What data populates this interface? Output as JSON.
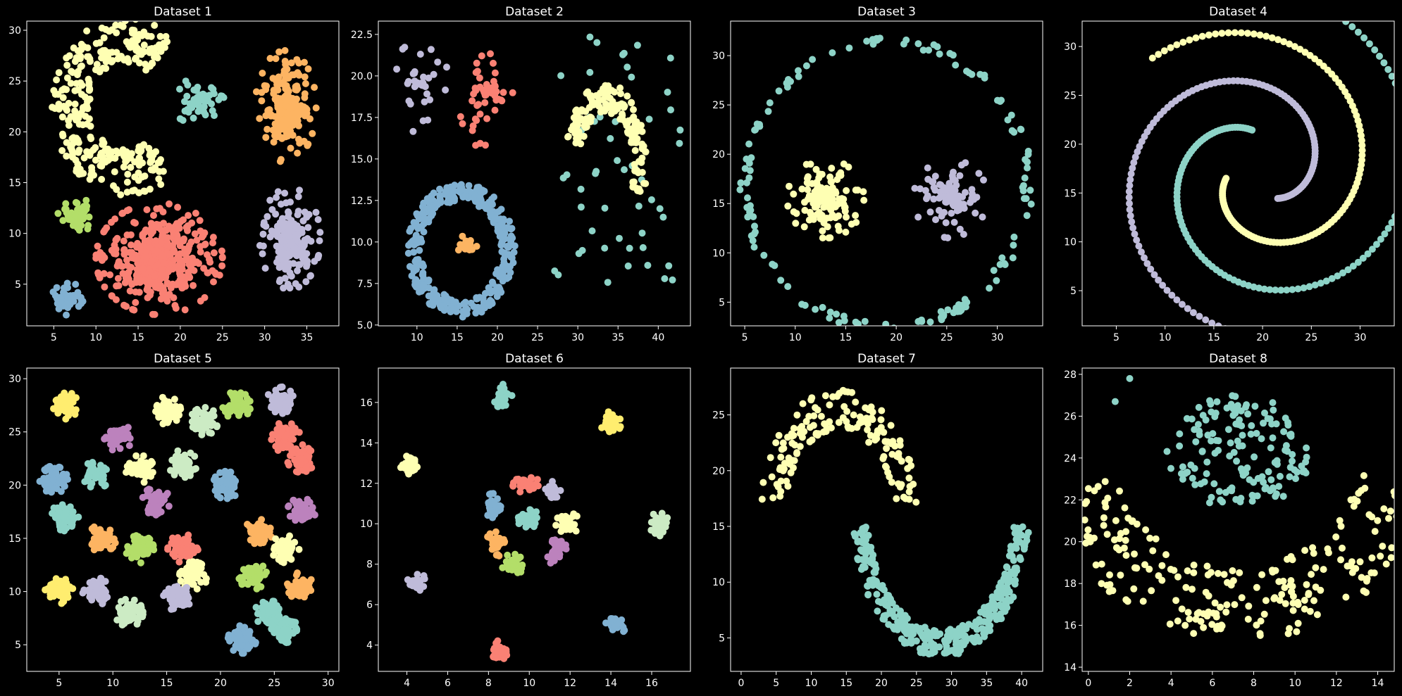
{
  "figure": {
    "background": "#000000",
    "text_color": "#ffffff"
  },
  "palette": [
    "#8dd3c7",
    "#feffb3",
    "#bfbbd9",
    "#fa8174",
    "#81b1d2",
    "#fdb462",
    "#b3de69",
    "#bc82bd",
    "#ccebc4",
    "#ffed6f"
  ],
  "chart_data": [
    {
      "type": "scatter",
      "title": "Dataset 1",
      "xlim": [
        1.8,
        38.8
      ],
      "ylim": [
        0.9,
        30.9
      ],
      "xticks": [
        5,
        10,
        15,
        20,
        25,
        30,
        35
      ],
      "yticks": [
        5,
        10,
        15,
        20,
        25,
        30
      ],
      "clusters": [
        {
          "shape": "moon",
          "cx": 13.5,
          "cy": 22.5,
          "r": 6.5,
          "w": 4.5,
          "a0": 50,
          "a1": 310,
          "n": 300,
          "color": 1
        },
        {
          "shape": "blob",
          "cx": 22.0,
          "cy": 23.0,
          "rx": 3.2,
          "ry": 2.2,
          "n": 60,
          "color": 0
        },
        {
          "shape": "blob",
          "cx": 32.5,
          "cy": 22.5,
          "rx": 3.6,
          "ry": 5.5,
          "n": 220,
          "color": 5
        },
        {
          "shape": "blob",
          "cx": 33.0,
          "cy": 9.5,
          "rx": 3.6,
          "ry": 5.0,
          "n": 210,
          "color": 2
        },
        {
          "shape": "blob",
          "cx": 17.5,
          "cy": 7.5,
          "rx": 7.5,
          "ry": 5.5,
          "n": 520,
          "color": 3
        },
        {
          "shape": "blob",
          "cx": 7.7,
          "cy": 11.8,
          "rx": 2.2,
          "ry": 1.7,
          "n": 50,
          "color": 6
        },
        {
          "shape": "blob",
          "cx": 6.8,
          "cy": 3.5,
          "rx": 2.1,
          "ry": 1.6,
          "n": 50,
          "color": 4
        }
      ]
    },
    {
      "type": "scatter",
      "title": "Dataset 2",
      "xlim": [
        5.2,
        44.0
      ],
      "ylim": [
        4.95,
        23.3
      ],
      "xticks": [
        10,
        15,
        20,
        25,
        30,
        35,
        40
      ],
      "yticks": [
        5.0,
        7.5,
        10.0,
        12.5,
        15.0,
        17.5,
        20.0,
        22.5
      ],
      "tick_decimals": 1,
      "clusters": [
        {
          "shape": "blob",
          "cx": 10.5,
          "cy": 19.5,
          "rx": 3.4,
          "ry": 3.0,
          "n": 35,
          "color": 2
        },
        {
          "shape": "blob",
          "cx": 18.5,
          "cy": 19.0,
          "rx": 3.4,
          "ry": 3.4,
          "n": 50,
          "color": 3
        },
        {
          "shape": "uniform",
          "x0": 27,
          "x1": 43,
          "y0": 7.5,
          "y1": 22.5,
          "n": 55,
          "color": 0
        },
        {
          "shape": "moon",
          "cx": 33.5,
          "cy": 14.5,
          "r": 4.2,
          "w": 1.8,
          "a0": -20,
          "a1": 160,
          "n": 160,
          "color": 1
        },
        {
          "shape": "ring",
          "cx": 15.5,
          "cy": 9.5,
          "rx": 5.8,
          "ry": 3.5,
          "w": 0.55,
          "n": 330,
          "color": 4
        },
        {
          "shape": "blob",
          "cx": 16.2,
          "cy": 9.8,
          "rx": 1.3,
          "ry": 0.6,
          "n": 30,
          "color": 5
        }
      ]
    },
    {
      "type": "scatter",
      "title": "Dataset 3",
      "xlim": [
        3.6,
        34.5
      ],
      "ylim": [
        2.6,
        33.5
      ],
      "xticks": [
        5,
        10,
        15,
        20,
        25,
        30
      ],
      "yticks": [
        5,
        10,
        15,
        20,
        25,
        30
      ],
      "clusters": [
        {
          "shape": "ring",
          "cx": 19.0,
          "cy": 17.0,
          "rx": 14.0,
          "ry": 14.5,
          "w": 0.5,
          "n": 140,
          "color": 0
        },
        {
          "shape": "blob",
          "cx": 13.0,
          "cy": 15.5,
          "rx": 3.8,
          "ry": 4.0,
          "n": 150,
          "color": 1
        },
        {
          "shape": "blob",
          "cx": 25.5,
          "cy": 15.5,
          "rx": 3.8,
          "ry": 4.0,
          "n": 110,
          "color": 2
        }
      ]
    },
    {
      "type": "scatter",
      "title": "Dataset 4",
      "xlim": [
        1.5,
        33.5
      ],
      "ylim": [
        1.4,
        32.6
      ],
      "xticks": [
        5,
        10,
        15,
        20,
        25,
        30
      ],
      "yticks": [
        5,
        10,
        15,
        20,
        25,
        30
      ],
      "clusters": [
        {
          "shape": "spiral",
          "cx": 19.5,
          "cy": 17.0,
          "n": 130,
          "a": 0.4,
          "b": 2.4,
          "t0": 1.7,
          "t1": 7.7,
          "phase": 0,
          "color": 0
        },
        {
          "shape": "spiral",
          "cx": 19.5,
          "cy": 17.0,
          "n": 120,
          "a": 0.4,
          "b": 2.4,
          "t0": 1.2,
          "t1": 6.5,
          "phase": 2.094,
          "color": 1
        },
        {
          "shape": "spiral",
          "cx": 19.5,
          "cy": 17.0,
          "n": 120,
          "a": 0.4,
          "b": 2.4,
          "t0": 1.2,
          "t1": 6.6,
          "phase": 4.189,
          "color": 2
        }
      ]
    },
    {
      "type": "scatter",
      "title": "Dataset 5",
      "xlim": [
        2.0,
        31.0
      ],
      "ylim": [
        2.5,
        31.0
      ],
      "xticks": [
        5,
        10,
        15,
        20,
        25,
        30
      ],
      "yticks": [
        5,
        10,
        15,
        20,
        25,
        30
      ],
      "clusters": [
        {
          "shape": "blob",
          "cx": 5.5,
          "cy": 27.5,
          "rx": 1.3,
          "ry": 1.3,
          "n": 85,
          "color": 9
        },
        {
          "shape": "blob",
          "cx": 15.0,
          "cy": 27.0,
          "rx": 1.3,
          "ry": 1.3,
          "n": 85,
          "color": 1
        },
        {
          "shape": "blob",
          "cx": 18.5,
          "cy": 26.0,
          "rx": 1.3,
          "ry": 1.3,
          "n": 85,
          "color": 8
        },
        {
          "shape": "blob",
          "cx": 21.5,
          "cy": 27.5,
          "rx": 1.3,
          "ry": 1.3,
          "n": 85,
          "color": 6
        },
        {
          "shape": "blob",
          "cx": 25.5,
          "cy": 28.0,
          "rx": 1.3,
          "ry": 1.3,
          "n": 85,
          "color": 2
        },
        {
          "shape": "blob",
          "cx": 10.5,
          "cy": 24.5,
          "rx": 1.3,
          "ry": 1.3,
          "n": 85,
          "color": 7
        },
        {
          "shape": "blob",
          "cx": 26.0,
          "cy": 24.5,
          "rx": 1.4,
          "ry": 1.4,
          "n": 90,
          "color": 3
        },
        {
          "shape": "blob",
          "cx": 27.5,
          "cy": 22.5,
          "rx": 1.3,
          "ry": 1.3,
          "n": 85,
          "color": 3
        },
        {
          "shape": "blob",
          "cx": 4.5,
          "cy": 20.5,
          "rx": 1.3,
          "ry": 1.3,
          "n": 85,
          "color": 4
        },
        {
          "shape": "blob",
          "cx": 8.5,
          "cy": 21.0,
          "rx": 1.3,
          "ry": 1.3,
          "n": 85,
          "color": 0
        },
        {
          "shape": "blob",
          "cx": 12.5,
          "cy": 21.5,
          "rx": 1.3,
          "ry": 1.3,
          "n": 85,
          "color": 1
        },
        {
          "shape": "blob",
          "cx": 16.5,
          "cy": 22.0,
          "rx": 1.3,
          "ry": 1.3,
          "n": 85,
          "color": 8
        },
        {
          "shape": "blob",
          "cx": 20.5,
          "cy": 20.0,
          "rx": 1.3,
          "ry": 1.3,
          "n": 85,
          "color": 4
        },
        {
          "shape": "blob",
          "cx": 14.0,
          "cy": 18.5,
          "rx": 1.3,
          "ry": 1.3,
          "n": 85,
          "color": 7
        },
        {
          "shape": "blob",
          "cx": 5.5,
          "cy": 17.0,
          "rx": 1.3,
          "ry": 1.3,
          "n": 85,
          "color": 0
        },
        {
          "shape": "blob",
          "cx": 9.0,
          "cy": 15.0,
          "rx": 1.3,
          "ry": 1.3,
          "n": 85,
          "color": 5
        },
        {
          "shape": "blob",
          "cx": 12.5,
          "cy": 14.0,
          "rx": 1.3,
          "ry": 1.3,
          "n": 85,
          "color": 6
        },
        {
          "shape": "blob",
          "cx": 16.5,
          "cy": 14.0,
          "rx": 1.4,
          "ry": 1.4,
          "n": 90,
          "color": 3
        },
        {
          "shape": "blob",
          "cx": 23.5,
          "cy": 15.5,
          "rx": 1.3,
          "ry": 1.3,
          "n": 85,
          "color": 5
        },
        {
          "shape": "blob",
          "cx": 27.5,
          "cy": 17.5,
          "rx": 1.3,
          "ry": 1.3,
          "n": 85,
          "color": 7
        },
        {
          "shape": "blob",
          "cx": 26.0,
          "cy": 14.0,
          "rx": 1.3,
          "ry": 1.3,
          "n": 85,
          "color": 1
        },
        {
          "shape": "blob",
          "cx": 17.5,
          "cy": 11.5,
          "rx": 1.3,
          "ry": 1.3,
          "n": 85,
          "color": 1
        },
        {
          "shape": "blob",
          "cx": 23.0,
          "cy": 11.5,
          "rx": 1.3,
          "ry": 1.3,
          "n": 85,
          "color": 6
        },
        {
          "shape": "blob",
          "cx": 27.5,
          "cy": 10.5,
          "rx": 1.3,
          "ry": 1.3,
          "n": 85,
          "color": 5
        },
        {
          "shape": "blob",
          "cx": 5.0,
          "cy": 10.0,
          "rx": 1.3,
          "ry": 1.3,
          "n": 85,
          "color": 9
        },
        {
          "shape": "blob",
          "cx": 8.5,
          "cy": 10.0,
          "rx": 1.3,
          "ry": 1.3,
          "n": 85,
          "color": 2
        },
        {
          "shape": "blob",
          "cx": 11.5,
          "cy": 8.0,
          "rx": 1.3,
          "ry": 1.3,
          "n": 85,
          "color": 8
        },
        {
          "shape": "blob",
          "cx": 16.0,
          "cy": 9.5,
          "rx": 1.3,
          "ry": 1.3,
          "n": 85,
          "color": 2
        },
        {
          "shape": "blob",
          "cx": 24.5,
          "cy": 8.0,
          "rx": 1.3,
          "ry": 1.3,
          "n": 85,
          "color": 0
        },
        {
          "shape": "blob",
          "cx": 22.0,
          "cy": 5.5,
          "rx": 1.3,
          "ry": 1.3,
          "n": 85,
          "color": 4
        },
        {
          "shape": "blob",
          "cx": 26.0,
          "cy": 6.5,
          "rx": 1.3,
          "ry": 1.3,
          "n": 85,
          "color": 0
        }
      ]
    },
    {
      "type": "scatter",
      "title": "Dataset 6",
      "xlim": [
        2.6,
        17.9
      ],
      "ylim": [
        2.7,
        17.7
      ],
      "xticks": [
        4,
        6,
        8,
        10,
        12,
        14,
        16
      ],
      "yticks": [
        4,
        6,
        8,
        10,
        12,
        14,
        16
      ],
      "clusters": [
        {
          "shape": "blob",
          "cx": 8.7,
          "cy": 16.3,
          "rx": 0.45,
          "ry": 0.6,
          "n": 40,
          "color": 0
        },
        {
          "shape": "blob",
          "cx": 4.2,
          "cy": 12.8,
          "rx": 0.5,
          "ry": 0.6,
          "n": 45,
          "color": 1
        },
        {
          "shape": "blob",
          "cx": 14.0,
          "cy": 15.0,
          "rx": 0.5,
          "ry": 0.55,
          "n": 45,
          "color": 9
        },
        {
          "shape": "blob",
          "cx": 9.9,
          "cy": 11.9,
          "rx": 0.7,
          "ry": 0.45,
          "n": 55,
          "color": 3
        },
        {
          "shape": "blob",
          "cx": 11.2,
          "cy": 11.6,
          "rx": 0.45,
          "ry": 0.5,
          "n": 35,
          "color": 2
        },
        {
          "shape": "blob",
          "cx": 8.2,
          "cy": 10.9,
          "rx": 0.4,
          "ry": 0.6,
          "n": 35,
          "color": 4
        },
        {
          "shape": "blob",
          "cx": 10.0,
          "cy": 10.2,
          "rx": 0.55,
          "ry": 0.5,
          "n": 45,
          "color": 0
        },
        {
          "shape": "blob",
          "cx": 11.9,
          "cy": 10.0,
          "rx": 0.6,
          "ry": 0.55,
          "n": 45,
          "color": 1
        },
        {
          "shape": "blob",
          "cx": 16.4,
          "cy": 10.0,
          "rx": 0.5,
          "ry": 0.6,
          "n": 45,
          "color": 8
        },
        {
          "shape": "blob",
          "cx": 8.4,
          "cy": 9.0,
          "rx": 0.6,
          "ry": 0.6,
          "n": 45,
          "color": 5
        },
        {
          "shape": "blob",
          "cx": 11.3,
          "cy": 8.6,
          "rx": 0.6,
          "ry": 0.6,
          "n": 45,
          "color": 7
        },
        {
          "shape": "blob",
          "cx": 9.2,
          "cy": 8.0,
          "rx": 0.6,
          "ry": 0.5,
          "n": 45,
          "color": 6
        },
        {
          "shape": "blob",
          "cx": 4.5,
          "cy": 7.1,
          "rx": 0.6,
          "ry": 0.4,
          "n": 40,
          "color": 2
        },
        {
          "shape": "blob",
          "cx": 14.2,
          "cy": 5.0,
          "rx": 0.55,
          "ry": 0.5,
          "n": 40,
          "color": 4
        },
        {
          "shape": "blob",
          "cx": 8.6,
          "cy": 3.7,
          "rx": 0.5,
          "ry": 0.55,
          "n": 40,
          "color": 3
        }
      ]
    },
    {
      "type": "scatter",
      "title": "Dataset 7",
      "xlim": [
        -1.5,
        43.0
      ],
      "ylim": [
        2.0,
        29.2
      ],
      "xticks": [
        0,
        5,
        10,
        15,
        20,
        25,
        30,
        35,
        40
      ],
      "yticks": [
        5,
        10,
        15,
        20,
        25
      ],
      "clusters": [
        {
          "shape": "moon",
          "cx": 14.0,
          "cy": 16.0,
          "r": 9.5,
          "w": 3.6,
          "a0": 5,
          "a1": 175,
          "n": 150,
          "color": 1
        },
        {
          "shape": "moon",
          "cx": 28.5,
          "cy": 16.0,
          "r": 11.5,
          "w": 2.4,
          "a0": 185,
          "a1": 355,
          "n": 330,
          "color": 0
        }
      ]
    },
    {
      "type": "scatter",
      "title": "Dataset 8",
      "xlim": [
        -0.3,
        14.8
      ],
      "ylim": [
        13.8,
        28.3
      ],
      "xticks": [
        0,
        2,
        4,
        6,
        8,
        10,
        12,
        14
      ],
      "yticks": [
        14,
        16,
        18,
        20,
        22,
        24,
        26,
        28
      ],
      "clusters": [
        {
          "shape": "blob",
          "cx": 7.3,
          "cy": 24.3,
          "rx": 3.5,
          "ry": 2.7,
          "n": 150,
          "color": 0,
          "uniform_disc": true
        },
        {
          "shape": "moon",
          "cx": 7.3,
          "cy": 24.8,
          "r": 7.8,
          "w": 3.5,
          "a0": 195,
          "a1": 345,
          "n": 220,
          "color": 1
        },
        {
          "shape": "points",
          "pts": [
            [
              1.3,
              26.7
            ],
            [
              2.0,
              27.8
            ]
          ],
          "color": 0
        }
      ]
    }
  ]
}
